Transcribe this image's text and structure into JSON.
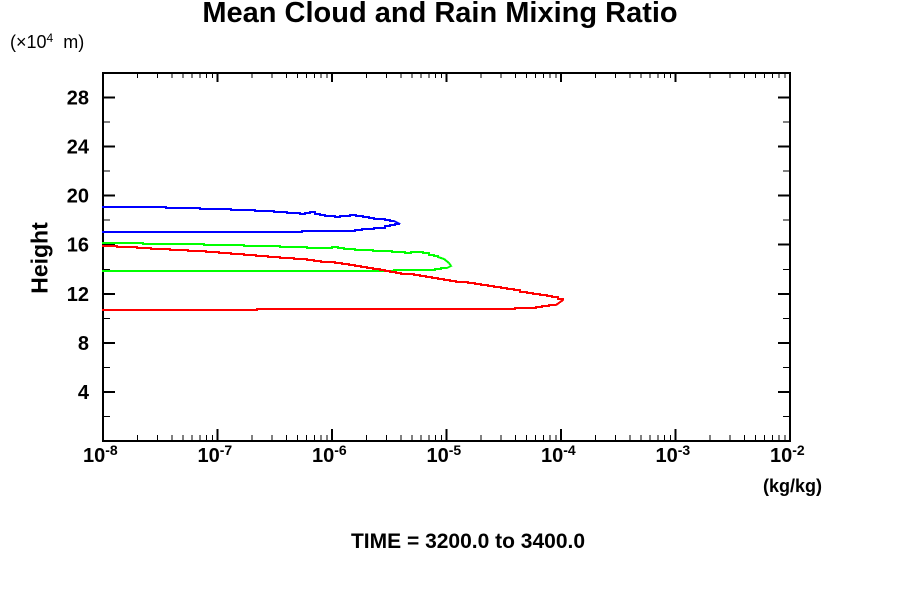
{
  "title": "Mean Cloud and Rain Mixing Ratio",
  "y_unit": {
    "prefix": "(×10",
    "sup": "4",
    "suffix": "  m)"
  },
  "y_axis_title": "Height",
  "x_unit_label": "(kg/kg)",
  "footer": "TIME = 3200.0 to 3400.0",
  "chart_data": {
    "type": "line",
    "title": "Mean Cloud and Rain Mixing Ratio",
    "xlabel": "(kg/kg)",
    "ylabel": "Height (x10^4 m)",
    "x_scale": "log",
    "xlim": [
      1e-08,
      0.01
    ],
    "ylim": [
      0,
      30
    ],
    "x_tick_exponents": [
      -8,
      -7,
      -6,
      -5,
      -4,
      -3,
      -2
    ],
    "y_tick_major": [
      4,
      8,
      12,
      16,
      20,
      24,
      28
    ],
    "y_tick_minor_step": 2,
    "grid": false,
    "legend": "none",
    "annotation": "TIME = 3200.0 to 3400.0",
    "series": [
      {
        "name": "blue",
        "color": "#0000ff",
        "points": [
          [
            1e-08,
            19.1
          ],
          [
            3.1e-08,
            19.05
          ],
          [
            7e-08,
            18.95
          ],
          [
            1.9e-07,
            18.8
          ],
          [
            3.5e-07,
            18.65
          ],
          [
            5.3e-07,
            18.5
          ],
          [
            6.4e-07,
            18.65
          ],
          [
            7.8e-07,
            18.4
          ],
          [
            1.06e-06,
            18.3
          ],
          [
            1.43e-06,
            18.4
          ],
          [
            2.1e-06,
            18.15
          ],
          [
            2.9e-06,
            18.05
          ],
          [
            3.5e-06,
            17.9
          ],
          [
            3.9e-06,
            17.7
          ],
          [
            2.9e-06,
            17.4
          ],
          [
            2.1e-06,
            17.25
          ],
          [
            1.4e-06,
            17.1
          ],
          [
            1.9e-07,
            17.05
          ],
          [
            1e-08,
            17.0
          ]
        ]
      },
      {
        "name": "green",
        "color": "#00ff00",
        "points": [
          [
            1e-08,
            16.15
          ],
          [
            5e-08,
            16.05
          ],
          [
            1.5e-07,
            15.95
          ],
          [
            3.5e-07,
            15.85
          ],
          [
            8e-07,
            15.7
          ],
          [
            1e-06,
            15.78
          ],
          [
            1.6e-06,
            15.6
          ],
          [
            2.6e-06,
            15.5
          ],
          [
            4.3e-06,
            15.35
          ],
          [
            5.5e-06,
            15.42
          ],
          [
            7e-06,
            15.2
          ],
          [
            8.5e-06,
            15.0
          ],
          [
            9.5e-06,
            14.8
          ],
          [
            1.05e-05,
            14.55
          ],
          [
            1.1e-05,
            14.3
          ],
          [
            1e-05,
            14.1
          ],
          [
            8e-06,
            13.95
          ],
          [
            4e-06,
            13.9
          ],
          [
            1e-08,
            13.85
          ]
        ]
      },
      {
        "name": "red",
        "color": "#ff0000",
        "points": [
          [
            1e-08,
            15.9
          ],
          [
            3e-08,
            15.65
          ],
          [
            7e-08,
            15.45
          ],
          [
            1.7e-07,
            15.2
          ],
          [
            3.5e-07,
            14.95
          ],
          [
            7e-07,
            14.7
          ],
          [
            1.4e-06,
            14.35
          ],
          [
            2.6e-06,
            13.9
          ],
          [
            4e-06,
            13.65
          ],
          [
            5.9e-06,
            13.45
          ],
          [
            8.5e-06,
            13.2
          ],
          [
            1.2e-05,
            13.0
          ],
          [
            2e-05,
            12.75
          ],
          [
            3e-05,
            12.45
          ],
          [
            5e-05,
            12.1
          ],
          [
            7.5e-05,
            11.8
          ],
          [
            0.000105,
            11.5
          ],
          [
            9e-05,
            11.1
          ],
          [
            6e-05,
            10.85
          ],
          [
            3e-05,
            10.75
          ],
          [
            1e-08,
            10.7
          ]
        ]
      }
    ]
  }
}
